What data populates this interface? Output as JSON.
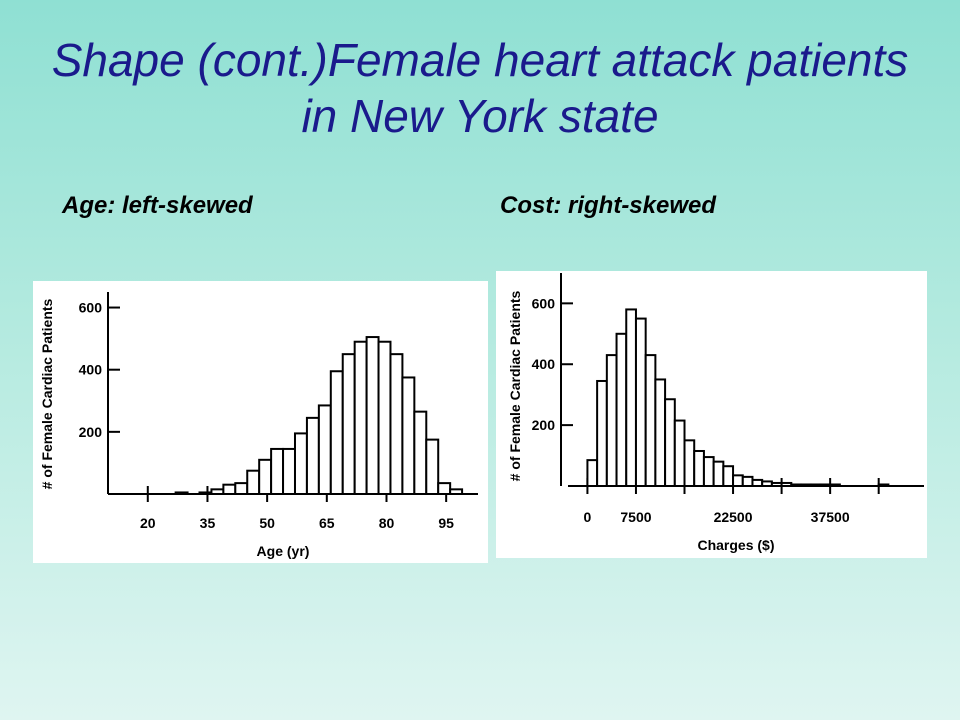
{
  "slide": {
    "title": "Shape (cont.)Female heart attack patients in New York state",
    "left_subtitle": "Age: left-skewed",
    "right_subtitle": "Cost: right-skewed"
  },
  "chart_data": [
    {
      "type": "bar",
      "xlabel": "Age (yr)",
      "ylabel": "# of Female Cardiac Patients",
      "x_ticks": [
        "20",
        "35",
        "50",
        "65",
        "80",
        "95"
      ],
      "x_tick_values": [
        20,
        35,
        50,
        65,
        80,
        95
      ],
      "y_ticks": [
        "200",
        "400",
        "600"
      ],
      "y_tick_values": [
        200,
        400,
        600
      ],
      "xlim": [
        10,
        103
      ],
      "ylim": [
        0,
        650
      ],
      "bin_width": 3,
      "bin_starts": [
        27,
        30,
        33,
        36,
        39,
        42,
        45,
        48,
        51,
        54,
        57,
        60,
        63,
        66,
        69,
        72,
        75,
        78,
        81,
        84,
        87,
        90,
        93,
        96
      ],
      "values": [
        5,
        0,
        5,
        15,
        30,
        35,
        75,
        110,
        145,
        145,
        195,
        245,
        285,
        395,
        450,
        490,
        505,
        490,
        450,
        375,
        265,
        175,
        35,
        15
      ]
    },
    {
      "type": "bar",
      "xlabel": "Charges ($)",
      "ylabel": "# of Female Cardiac Patients",
      "x_ticks": [
        "0",
        "7500",
        "22500",
        "37500"
      ],
      "x_tick_values": [
        0,
        7500,
        22500,
        37500
      ],
      "x_tick_marks": [
        0,
        7500,
        15000,
        22500,
        30000,
        37500,
        45000
      ],
      "y_ticks": [
        "200",
        "400",
        "600"
      ],
      "y_tick_values": [
        200,
        400,
        600
      ],
      "xlim": [
        -3000,
        52000
      ],
      "ylim": [
        0,
        680
      ],
      "bin_width": 1500,
      "bin_starts": [
        0,
        1500,
        3000,
        4500,
        6000,
        7500,
        9000,
        10500,
        12000,
        13500,
        15000,
        16500,
        18000,
        19500,
        21000,
        22500,
        24000,
        25500,
        27000,
        28500,
        30000,
        31500,
        33000,
        34500,
        36000,
        37500,
        45000
      ],
      "values": [
        85,
        345,
        430,
        500,
        580,
        550,
        430,
        350,
        285,
        215,
        150,
        115,
        95,
        80,
        65,
        35,
        30,
        20,
        15,
        10,
        10,
        5,
        5,
        5,
        5,
        5,
        5
      ]
    }
  ]
}
